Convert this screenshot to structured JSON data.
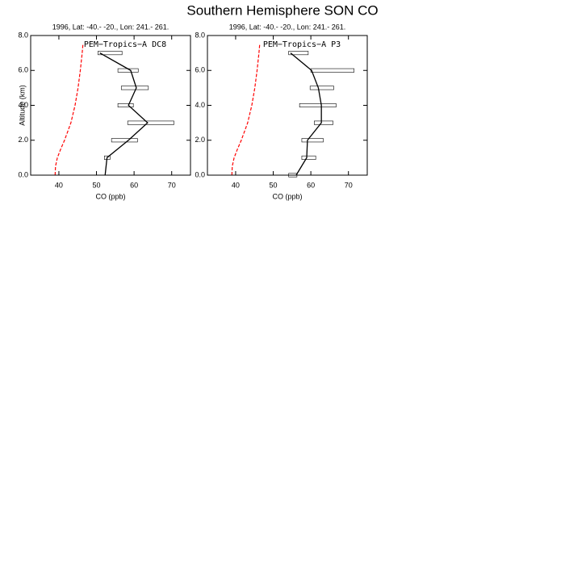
{
  "title": "Southern Hemisphere SON CO",
  "chart_data": [
    {
      "type": "line",
      "subtitle": "1996, Lat: -40.- -20., Lon: 241.- 261.",
      "annotation": "PEM−Tropics−A DC8",
      "xlabel": "CO (ppb)",
      "ylabel": "Altitude (km)",
      "xlim": [
        32.5,
        75
      ],
      "xticks": [
        40,
        50,
        60,
        70
      ],
      "ylim": [
        0,
        8
      ],
      "yticks": [
        {
          "value": 0,
          "label": "0.0"
        },
        {
          "value": 2,
          "label": "2.0"
        },
        {
          "value": 4,
          "label": "4.0"
        },
        {
          "value": 6,
          "label": "6.0"
        },
        {
          "value": 8,
          "label": "8.0"
        }
      ],
      "altitudes": [
        0,
        1,
        2,
        3,
        4,
        5,
        6,
        7
      ],
      "mean": [
        52.3,
        52.8,
        58.5,
        63.6,
        58.5,
        60.6,
        59.1,
        50.9
      ],
      "range_low": [
        null,
        52.1,
        54.0,
        58.3,
        55.7,
        56.6,
        55.7,
        50.4
      ],
      "range_high": [
        null,
        53.6,
        60.9,
        70.6,
        59.8,
        63.8,
        61.1,
        56.8
      ],
      "obs_color": "#000000",
      "model": {
        "color": "#ff0000",
        "dashed": true,
        "altitudes": [
          0,
          0.5,
          1,
          1.5,
          2,
          3,
          4,
          5,
          6,
          7,
          7.5
        ],
        "values": [
          39.0,
          39.1,
          39.6,
          40.5,
          41.5,
          43.2,
          44.3,
          45.1,
          45.7,
          46.2,
          46.4
        ]
      }
    },
    {
      "type": "line",
      "subtitle": "1996, Lat: -40.- -20., Lon: 241.- 261.",
      "annotation": "PEM−Tropics−A P3",
      "xlabel": "CO (ppb)",
      "xlim": [
        32.5,
        75
      ],
      "xticks": [
        40,
        50,
        60,
        70
      ],
      "ylim": [
        0,
        8
      ],
      "yticks": [
        {
          "value": 0,
          "label": "0.0"
        },
        {
          "value": 2,
          "label": "2.0"
        },
        {
          "value": 4,
          "label": "4.0"
        },
        {
          "value": 6,
          "label": "6.0"
        },
        {
          "value": 8,
          "label": "8.0"
        }
      ],
      "altitudes": [
        0,
        1,
        2,
        3,
        4,
        5,
        6,
        7
      ],
      "mean": [
        56.1,
        58.9,
        59.1,
        62.8,
        62.8,
        62.0,
        60.2,
        54.6
      ],
      "range_low": [
        54.1,
        57.6,
        57.6,
        60.9,
        57.0,
        59.8,
        60.0,
        54.1
      ],
      "range_high": [
        56.3,
        61.3,
        63.3,
        65.9,
        66.7,
        66.1,
        71.5,
        59.3
      ],
      "obs_color": "#000000",
      "model": {
        "color": "#ff0000",
        "dashed": true,
        "altitudes": [
          0,
          0.5,
          1,
          1.5,
          2,
          3,
          4,
          5,
          6,
          7,
          7.5
        ],
        "values": [
          39.0,
          39.1,
          39.6,
          40.5,
          41.5,
          43.2,
          44.3,
          45.1,
          45.7,
          46.2,
          46.4
        ]
      }
    }
  ]
}
